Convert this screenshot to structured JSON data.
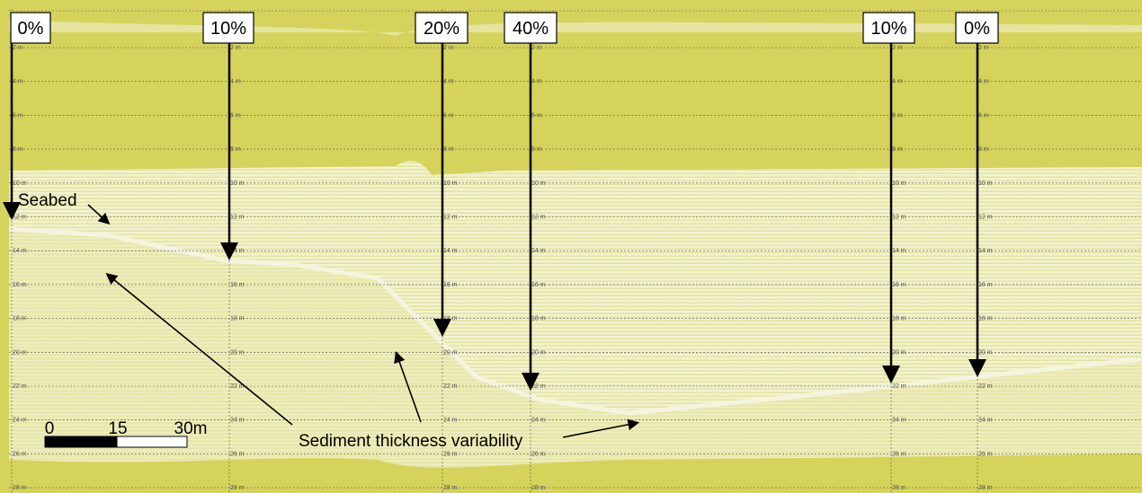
{
  "markers": [
    {
      "label": "0%"
    },
    {
      "label": "10%"
    },
    {
      "label": "20%"
    },
    {
      "label": "40%"
    },
    {
      "label": "10%"
    },
    {
      "label": "0%"
    }
  ],
  "depth_labels": [
    "2 m",
    "4 m",
    "6 m",
    "8 m",
    "10 m",
    "12 m",
    "14 m",
    "16 m",
    "18 m",
    "20 m",
    "22 m",
    "24 m",
    "26 m",
    "28 m"
  ],
  "annotations": {
    "seabed": "Seabed",
    "sediment": "Sediment thickness variability"
  },
  "scale_bar": {
    "labels": [
      "0",
      "15",
      "30m"
    ]
  }
}
